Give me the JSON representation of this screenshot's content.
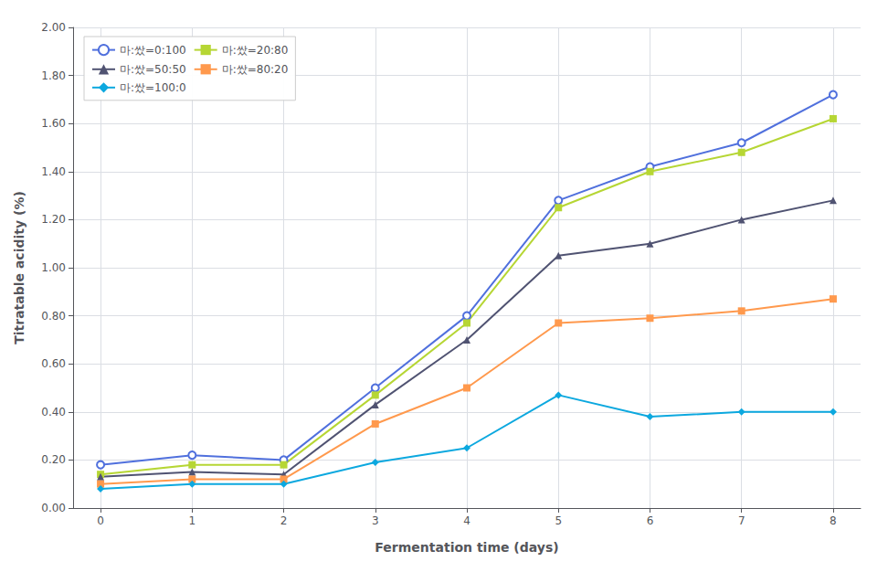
{
  "chart_data": {
    "type": "line",
    "xlabel": "Fermentation time (days)",
    "ylabel": "Titratable acidity (%)",
    "x": [
      0,
      1,
      2,
      3,
      4,
      5,
      6,
      7,
      8
    ],
    "series": [
      {
        "name": "마:쌌=0:100",
        "marker": "circle",
        "values": [
          0.18,
          0.22,
          0.2,
          0.5,
          0.8,
          1.28,
          1.42,
          1.52,
          1.72
        ]
      },
      {
        "name": "마:쌌=20:80",
        "marker": "square",
        "values": [
          0.14,
          0.18,
          0.18,
          0.47,
          0.77,
          1.25,
          1.4,
          1.48,
          1.62
        ]
      },
      {
        "name": "마:쌌=50:50",
        "marker": "triangle",
        "values": [
          0.13,
          0.15,
          0.14,
          0.43,
          0.7,
          1.05,
          1.1,
          1.2,
          1.28
        ]
      },
      {
        "name": "마:쌌=80:20",
        "marker": "square",
        "values": [
          0.1,
          0.12,
          0.12,
          0.35,
          0.5,
          0.77,
          0.79,
          0.82,
          0.87
        ]
      },
      {
        "name": "마:쌌=100:0",
        "marker": "diamond",
        "values": [
          0.08,
          0.1,
          0.1,
          0.19,
          0.25,
          0.47,
          0.38,
          0.4,
          0.4
        ]
      }
    ],
    "xlim": [
      -0.3,
      8.3
    ],
    "ylim": [
      0.0,
      2.0
    ],
    "xticks": [
      0,
      1,
      2,
      3,
      4,
      5,
      6,
      7,
      8
    ],
    "yticks": [
      {
        "value": 0.0,
        "label": "0.00"
      },
      {
        "value": 0.2,
        "label": "0.20"
      },
      {
        "value": 0.4,
        "label": "0.40"
      },
      {
        "value": 0.6,
        "label": "0.60"
      },
      {
        "value": 0.8,
        "label": "0.80"
      },
      {
        "value": 1.0,
        "label": "1.00"
      },
      {
        "value": 1.2,
        "label": "1.20"
      },
      {
        "value": 1.4,
        "label": "1.40"
      },
      {
        "value": 1.6,
        "label": "1.60"
      },
      {
        "value": 1.8,
        "label": "1.80"
      },
      {
        "value": 2.0,
        "label": "2.00"
      }
    ],
    "grid": true,
    "legend": "upper left"
  }
}
